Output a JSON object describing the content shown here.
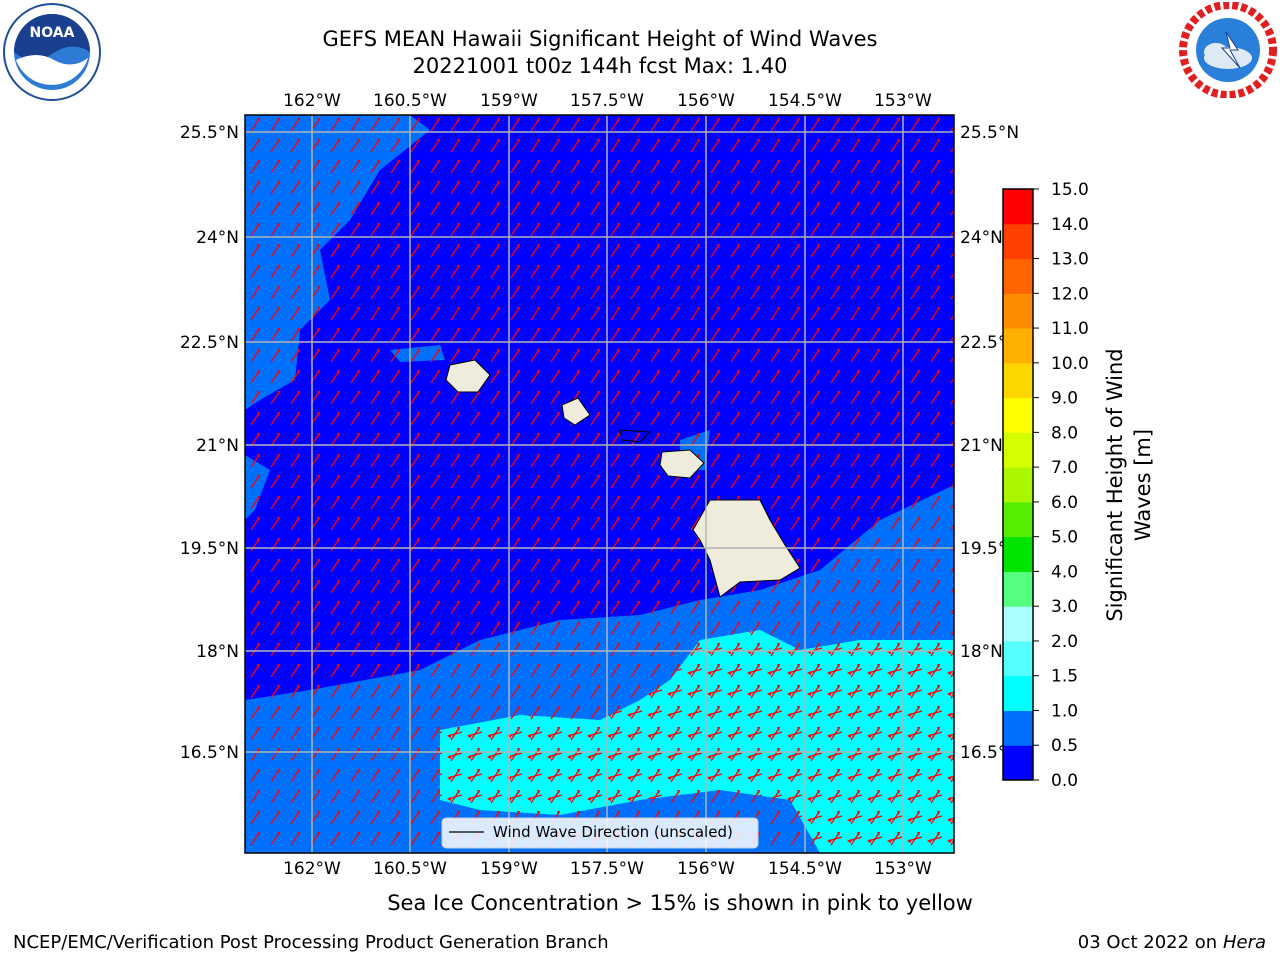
{
  "title": {
    "line1": "GEFS MEAN Hawaii Significant Height of Wind Waves",
    "line2": "20221001 t00z 144h fcst   Max: 1.40"
  },
  "lon_ticks": [
    "162°W",
    "160.5°W",
    "159°W",
    "157.5°W",
    "156°W",
    "154.5°W",
    "153°W"
  ],
  "lat_ticks": [
    "25.5°N",
    "24°N",
    "22.5°N",
    "21°N",
    "19.5°N",
    "18°N",
    "16.5°N"
  ],
  "colorbar": {
    "label_line1": "Significant Height of Wind",
    "label_line2": "Waves [m]",
    "ticks": [
      "0.0",
      "0.5",
      "1.0",
      "1.5",
      "2.0",
      "3.0",
      "4.0",
      "5.0",
      "6.0",
      "7.0",
      "8.0",
      "9.0",
      "10.0",
      "11.0",
      "12.0",
      "13.0",
      "14.0",
      "15.0"
    ],
    "colors": [
      "#0000ff",
      "#0070ff",
      "#00ffff",
      "#55ffff",
      "#aaffff",
      "#55ff7f",
      "#00e400",
      "#55ee00",
      "#aaf500",
      "#d4ff00",
      "#ffff00",
      "#ffd700",
      "#ffb000",
      "#ff8c00",
      "#ff6400",
      "#ff4000",
      "#ff0000"
    ]
  },
  "legend_label": "Wind Wave Direction (unscaled)",
  "note": "Sea Ice Concentration > 15% is shown in pink to yellow",
  "footer_left": "NCEP/EMC/Verification Post Processing Product Generation Branch",
  "footer_date": "03 Oct 2022 on ",
  "footer_host": "Hera",
  "logos": {
    "left": "noaa-logo",
    "right": "nws-logo",
    "left_text": "NOAA"
  },
  "colors": {
    "arrow": "#ff0000",
    "land": "#f0ecdc",
    "grid": "#b4b4b4"
  }
}
